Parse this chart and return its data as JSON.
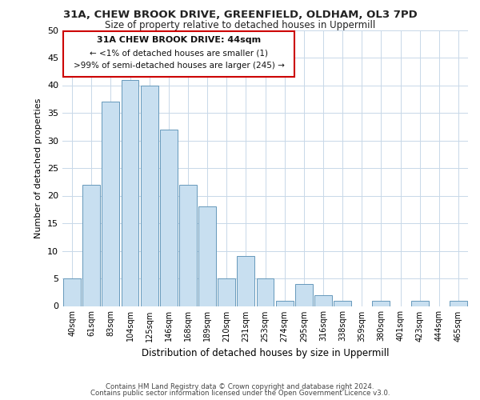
{
  "title_line1": "31A, CHEW BROOK DRIVE, GREENFIELD, OLDHAM, OL3 7PD",
  "title_line2": "Size of property relative to detached houses in Uppermill",
  "xlabel": "Distribution of detached houses by size in Uppermill",
  "ylabel": "Number of detached properties",
  "bar_labels": [
    "40sqm",
    "61sqm",
    "83sqm",
    "104sqm",
    "125sqm",
    "146sqm",
    "168sqm",
    "189sqm",
    "210sqm",
    "231sqm",
    "253sqm",
    "274sqm",
    "295sqm",
    "316sqm",
    "338sqm",
    "359sqm",
    "380sqm",
    "401sqm",
    "423sqm",
    "444sqm",
    "465sqm"
  ],
  "bar_values": [
    5,
    22,
    37,
    41,
    40,
    32,
    22,
    18,
    5,
    9,
    5,
    1,
    4,
    2,
    1,
    0,
    1,
    0,
    1,
    0,
    1
  ],
  "bar_facecolor": "#c8dff0",
  "bar_edgecolor": "#6699bb",
  "ylim": [
    0,
    50
  ],
  "yticks": [
    0,
    5,
    10,
    15,
    20,
    25,
    30,
    35,
    40,
    45,
    50
  ],
  "annotation_title": "31A CHEW BROOK DRIVE: 44sqm",
  "annotation_line1": "← <1% of detached houses are smaller (1)",
  "annotation_line2": ">99% of semi-detached houses are larger (245) →",
  "annotation_box_facecolor": "#ffffff",
  "annotation_box_edgecolor": "#cc0000",
  "footer_line1": "Contains HM Land Registry data © Crown copyright and database right 2024.",
  "footer_line2": "Contains public sector information licensed under the Open Government Licence v3.0.",
  "bg_color": "#ffffff",
  "grid_color": "#c8d8e8"
}
